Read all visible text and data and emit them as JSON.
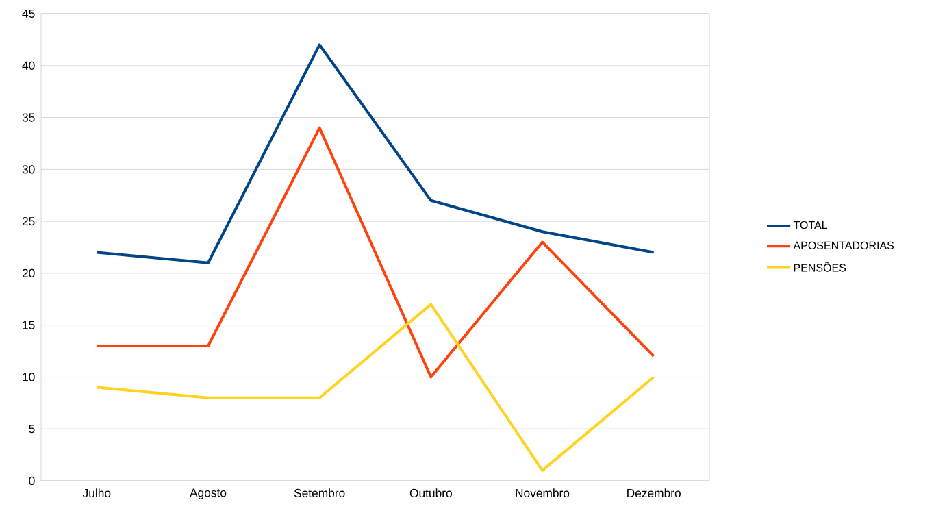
{
  "chart_data": {
    "type": "line",
    "categories": [
      "Julho",
      "Agosto",
      "Setembro",
      "Outubro",
      "Novembro",
      "Dezembro"
    ],
    "series": [
      {
        "name": "TOTAL",
        "color": "#004586",
        "values": [
          22,
          21,
          42,
          27,
          24,
          22
        ]
      },
      {
        "name": "APOSENTADORIAS",
        "color": "#ff420e",
        "values": [
          13,
          13,
          34,
          10,
          23,
          12
        ]
      },
      {
        "name": "PENSÕES",
        "color": "#ffd320",
        "values": [
          9,
          8,
          8,
          17,
          1,
          10
        ]
      }
    ],
    "ylim": [
      0,
      45
    ],
    "yticks": [
      0,
      5,
      10,
      15,
      20,
      25,
      30,
      35,
      40,
      45
    ],
    "grid": "y",
    "legend": "right",
    "marker": "none",
    "line_style": "solid"
  }
}
